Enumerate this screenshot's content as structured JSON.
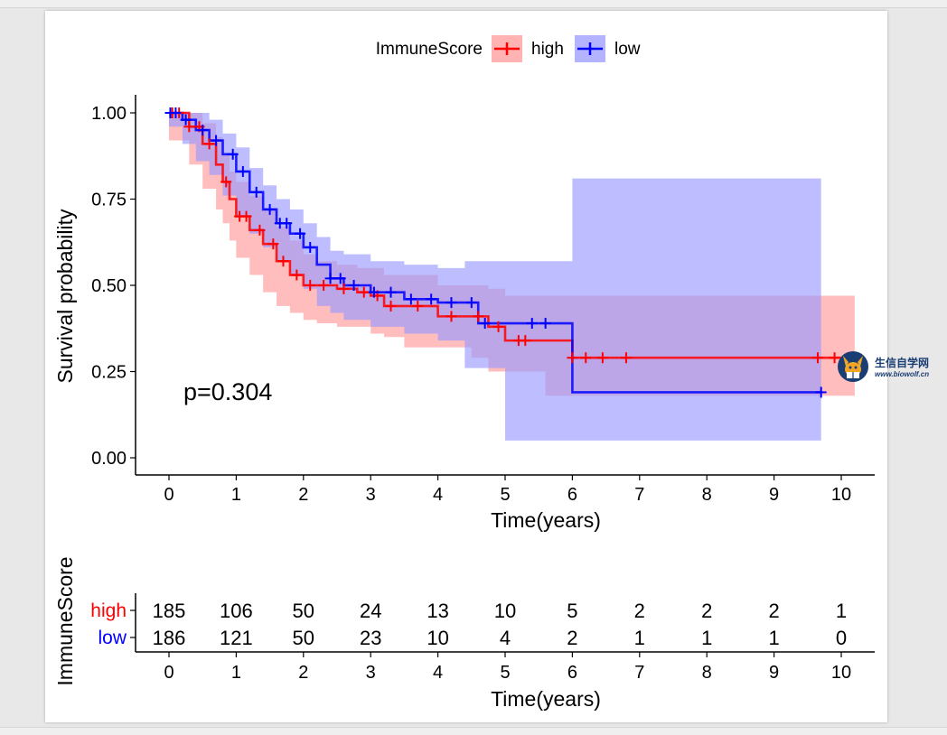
{
  "chart_data": {
    "type": "line",
    "subtype": "kaplan-meier",
    "legend": {
      "title": "ImmuneScore",
      "position": "top",
      "entries": [
        "high",
        "low"
      ]
    },
    "xlabel": "Time(years)",
    "ylabel": "Survival probability",
    "xlim": [
      0,
      10
    ],
    "ylim": [
      0,
      1
    ],
    "xticks": [
      "0",
      "1",
      "2",
      "3",
      "4",
      "5",
      "6",
      "7",
      "8",
      "9",
      "10"
    ],
    "yticks": [
      "0.00",
      "0.25",
      "0.50",
      "0.75",
      "1.00"
    ],
    "annotation": "p=0.304",
    "series": [
      {
        "name": "high",
        "color": "#ff0000",
        "band_color": "#ff9999",
        "x": [
          0,
          0.3,
          0.5,
          0.7,
          0.8,
          0.9,
          1.0,
          1.2,
          1.4,
          1.6,
          1.8,
          2.0,
          2.2,
          2.5,
          2.8,
          3.0,
          3.2,
          3.5,
          4.0,
          4.5,
          4.75,
          5.0,
          5.6,
          6.0,
          10.2
        ],
        "y": [
          1.0,
          0.96,
          0.91,
          0.85,
          0.8,
          0.75,
          0.7,
          0.66,
          0.62,
          0.57,
          0.53,
          0.5,
          0.5,
          0.49,
          0.48,
          0.47,
          0.44,
          0.44,
          0.41,
          0.41,
          0.38,
          0.34,
          0.34,
          0.29,
          0.29
        ],
        "upper": [
          1.0,
          1.0,
          0.97,
          0.93,
          0.88,
          0.83,
          0.8,
          0.76,
          0.72,
          0.67,
          0.63,
          0.59,
          0.57,
          0.56,
          0.55,
          0.55,
          0.53,
          0.53,
          0.5,
          0.5,
          0.49,
          0.47,
          0.47,
          0.47,
          0.47
        ],
        "lower": [
          1.0,
          0.92,
          0.85,
          0.78,
          0.72,
          0.68,
          0.63,
          0.58,
          0.53,
          0.48,
          0.44,
          0.42,
          0.4,
          0.39,
          0.38,
          0.38,
          0.36,
          0.35,
          0.32,
          0.32,
          0.29,
          0.25,
          0.25,
          0.18,
          0.18
        ],
        "censors_x": [
          0.05,
          0.15,
          0.3,
          0.45,
          0.6,
          0.85,
          1.05,
          1.15,
          1.35,
          1.55,
          1.7,
          1.9,
          2.1,
          2.3,
          2.6,
          2.9,
          3.1,
          3.3,
          3.7,
          4.2,
          4.6,
          4.9,
          5.2,
          5.3,
          6.0,
          6.2,
          6.45,
          6.8,
          9.65,
          9.9
        ],
        "at_risk": [
          "185",
          "106",
          "50",
          "24",
          "13",
          "10",
          "5",
          "2",
          "2",
          "2",
          "1"
        ]
      },
      {
        "name": "low",
        "color": "#0000ff",
        "band_color": "#9999ff",
        "x": [
          0,
          0.2,
          0.4,
          0.6,
          0.8,
          1.0,
          1.2,
          1.4,
          1.6,
          1.8,
          2.0,
          2.2,
          2.4,
          2.6,
          3.0,
          3.5,
          4.0,
          4.4,
          4.6,
          5.0,
          6.0,
          9.7
        ],
        "y": [
          1.0,
          0.98,
          0.95,
          0.92,
          0.88,
          0.83,
          0.77,
          0.72,
          0.68,
          0.65,
          0.61,
          0.56,
          0.52,
          0.5,
          0.48,
          0.46,
          0.45,
          0.45,
          0.39,
          0.39,
          0.19,
          0.19
        ],
        "upper": [
          1.0,
          1.0,
          1.0,
          0.98,
          0.94,
          0.9,
          0.84,
          0.79,
          0.75,
          0.72,
          0.68,
          0.64,
          0.6,
          0.59,
          0.57,
          0.56,
          0.55,
          0.57,
          0.57,
          0.57,
          0.81,
          0.81
        ],
        "lower": [
          1.0,
          0.96,
          0.91,
          0.86,
          0.82,
          0.76,
          0.7,
          0.65,
          0.61,
          0.57,
          0.53,
          0.49,
          0.44,
          0.42,
          0.4,
          0.38,
          0.36,
          0.34,
          0.26,
          0.26,
          0.05,
          0.05
        ],
        "censors_x": [
          0.02,
          0.1,
          0.25,
          0.5,
          0.7,
          0.95,
          1.1,
          1.3,
          1.5,
          1.65,
          1.75,
          1.95,
          2.1,
          2.4,
          2.55,
          2.75,
          3.05,
          3.3,
          3.6,
          3.9,
          4.2,
          4.5,
          4.7,
          5.4,
          5.6,
          9.7
        ],
        "at_risk": [
          "186",
          "121",
          "50",
          "23",
          "10",
          "4",
          "2",
          "1",
          "1",
          "1",
          "0"
        ]
      }
    ]
  },
  "risk_table": {
    "ylabel": "ImmuneScore",
    "xlabel": "Time(years)",
    "rows": [
      {
        "label": "high",
        "color": "#ff0000"
      },
      {
        "label": "low",
        "color": "#0000ff"
      }
    ]
  },
  "watermark": {
    "text_main": "生信自学网",
    "text_sub": "www.biowolf.cn"
  }
}
